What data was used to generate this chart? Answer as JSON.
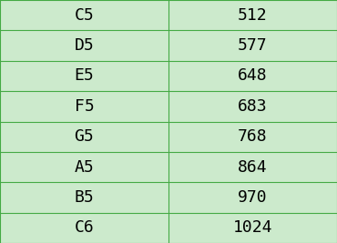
{
  "notes": [
    "C5",
    "D5",
    "E5",
    "F5",
    "G5",
    "A5",
    "B5",
    "C6"
  ],
  "frequencies": [
    "512",
    "577",
    "648",
    "683",
    "768",
    "864",
    "970",
    "1024"
  ],
  "bg_color": "#cceacc",
  "border_color": "#44aa44",
  "text_color": "#000000",
  "font_family": "monospace",
  "font_size": 13,
  "col_split": 0.5
}
